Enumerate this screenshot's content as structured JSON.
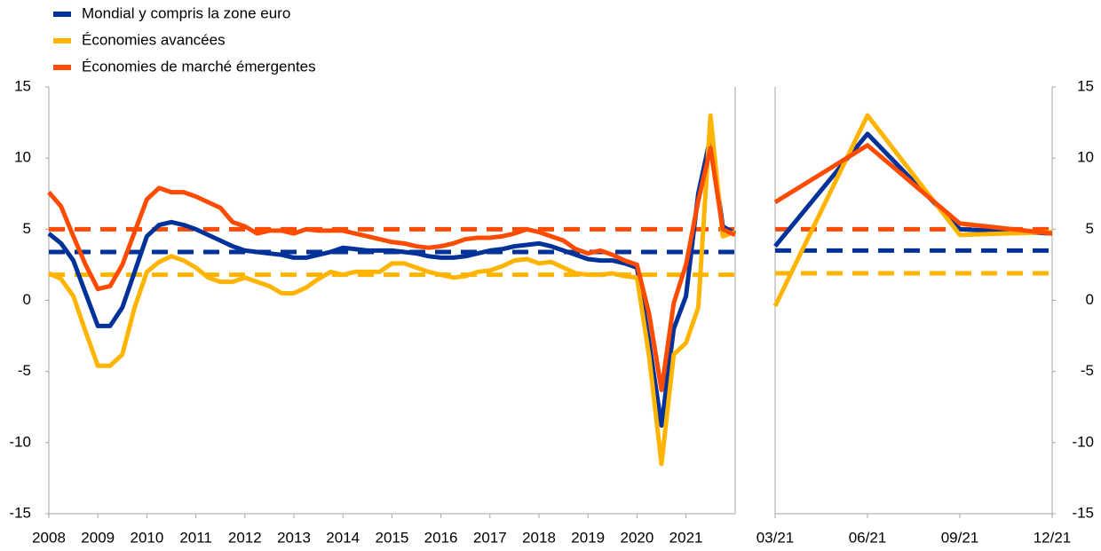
{
  "chart_data": [
    {
      "type": "line",
      "categories": [
        "2008",
        null,
        null,
        null,
        "2009",
        null,
        null,
        null,
        "2010",
        null,
        null,
        null,
        "2011",
        null,
        null,
        null,
        "2012",
        null,
        null,
        null,
        "2013",
        null,
        null,
        null,
        "2014",
        null,
        null,
        null,
        "2015",
        null,
        null,
        null,
        "2016",
        null,
        null,
        null,
        "2017",
        null,
        null,
        null,
        "2018",
        null,
        null,
        null,
        "2019",
        null,
        null,
        null,
        "2020",
        null,
        null,
        null,
        "2021",
        null,
        null,
        null,
        null
      ],
      "series": [
        {
          "name": "Mondial y compris la zone euro",
          "color": "#003299",
          "average": 3.4,
          "values": [
            4.7,
            4.0,
            2.8,
            0.5,
            -1.8,
            -1.8,
            -0.5,
            2.0,
            4.5,
            5.3,
            5.5,
            5.3,
            5.0,
            4.6,
            4.2,
            3.8,
            3.5,
            3.4,
            3.3,
            3.2,
            3.0,
            3.0,
            3.2,
            3.4,
            3.7,
            3.6,
            3.5,
            3.5,
            3.5,
            3.4,
            3.3,
            3.1,
            3.0,
            3.0,
            3.1,
            3.3,
            3.5,
            3.6,
            3.8,
            3.9,
            4.0,
            3.8,
            3.5,
            3.2,
            2.9,
            2.8,
            2.8,
            2.6,
            2.3,
            -3.0,
            -8.8,
            -2.0,
            0.3,
            7.5,
            11.5,
            5.2,
            4.7
          ]
        },
        {
          "name": "Économies avancées",
          "color": "#ffb400",
          "average": 1.8,
          "values": [
            1.9,
            1.5,
            0.3,
            -2.2,
            -4.6,
            -4.6,
            -3.8,
            -0.5,
            2.0,
            2.7,
            3.1,
            2.8,
            2.3,
            1.6,
            1.3,
            1.3,
            1.6,
            1.3,
            1.0,
            0.5,
            0.5,
            0.9,
            1.5,
            2.0,
            1.8,
            2.0,
            2.0,
            2.0,
            2.6,
            2.6,
            2.3,
            2.0,
            1.8,
            1.6,
            1.7,
            2.0,
            2.1,
            2.4,
            2.8,
            2.9,
            2.6,
            2.7,
            2.3,
            1.9,
            1.8,
            1.8,
            1.9,
            1.7,
            1.6,
            -4.0,
            -11.5,
            -3.8,
            -3.0,
            -0.5,
            13.0,
            4.5,
            4.8
          ]
        },
        {
          "name": "Économies de marché émergentes",
          "color": "#ff4b00",
          "average": 5.0,
          "values": [
            7.6,
            6.6,
            4.5,
            2.5,
            0.8,
            1.0,
            2.5,
            4.8,
            7.1,
            7.9,
            7.6,
            7.6,
            7.3,
            6.9,
            6.5,
            5.5,
            5.2,
            4.7,
            4.9,
            4.9,
            4.7,
            5.0,
            4.9,
            4.9,
            4.9,
            4.7,
            4.5,
            4.3,
            4.1,
            4.0,
            3.8,
            3.7,
            3.8,
            4.0,
            4.3,
            4.4,
            4.4,
            4.5,
            4.7,
            5.0,
            4.8,
            4.5,
            4.2,
            3.6,
            3.3,
            3.5,
            3.2,
            2.8,
            2.5,
            -1.0,
            -6.3,
            -0.2,
            2.5,
            7.0,
            10.7,
            5.0,
            4.6
          ]
        }
      ],
      "ylim": [
        -15,
        15
      ],
      "yticks": [
        -15,
        -10,
        -5,
        0,
        5,
        10,
        15
      ],
      "legend": "top-left"
    },
    {
      "type": "line",
      "categories": [
        "03/21",
        "06/21",
        "09/21",
        "12/21"
      ],
      "series": [
        {
          "color": "#003299",
          "average": 3.5,
          "values": [
            3.8,
            11.7,
            5.0,
            4.7
          ]
        },
        {
          "color": "#ffb400",
          "average": 1.9,
          "values": [
            -0.4,
            13.0,
            4.6,
            4.8
          ]
        },
        {
          "color": "#ff4b00",
          "average": 5.0,
          "values": [
            6.9,
            10.9,
            5.4,
            4.7
          ]
        }
      ],
      "ylim": [
        -15,
        15
      ],
      "yticks": [
        -15,
        -10,
        -5,
        0,
        5,
        10,
        15
      ]
    }
  ]
}
